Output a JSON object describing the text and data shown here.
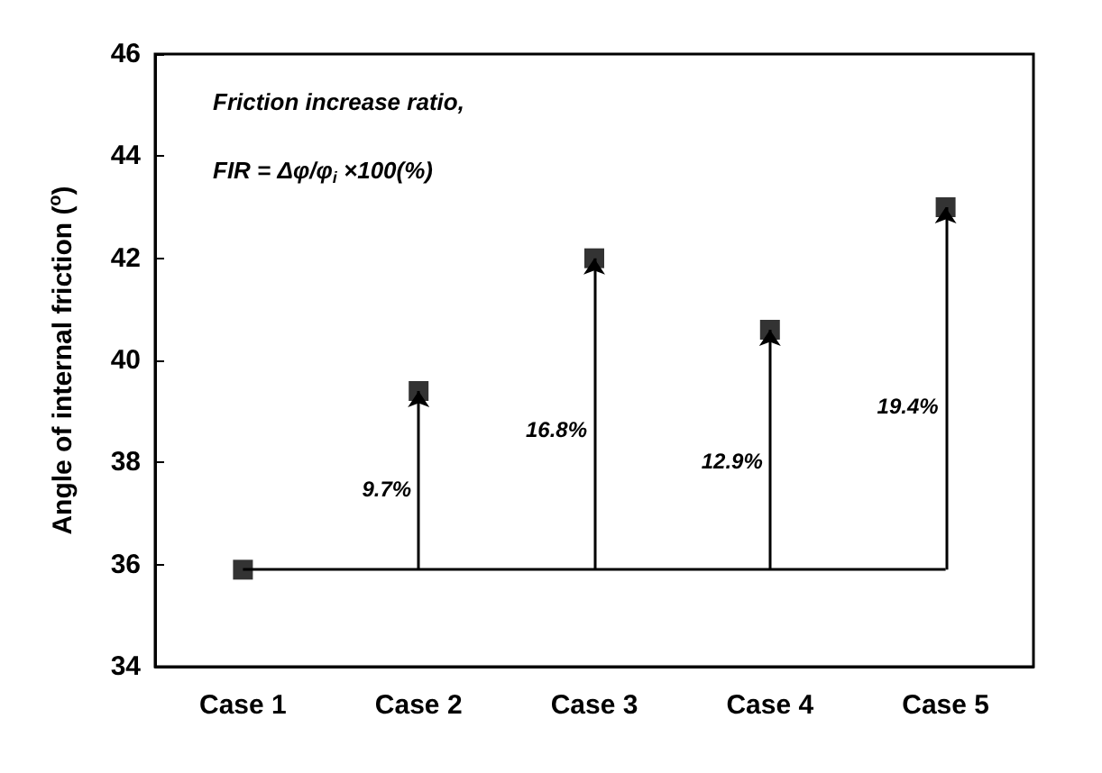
{
  "chart_data": {
    "type": "scatter",
    "ylabel": "Angle of internal friction ($^{o}$)",
    "categories": [
      "Case 1",
      "Case 2",
      "Case 3",
      "Case 4",
      "Case 5"
    ],
    "values": [
      35.9,
      39.4,
      42.0,
      40.6,
      43.0
    ],
    "color": "#000000",
    "marker": "square",
    "ylim": [
      34,
      46
    ],
    "yticks": [
      34,
      36,
      38,
      40,
      42,
      44,
      46
    ],
    "grid": false,
    "ref_lines": [
      {
        "axis": "y",
        "value": 35.9,
        "color": "#000000",
        "line_style": "solid"
      }
    ],
    "annotations": [
      "Friction increase ratio,",
      "FIR = Δφ/φ$_{i}$ ×100(%)",
      "9.7%",
      "16.8%",
      "12.9%",
      "19.4%"
    ]
  }
}
